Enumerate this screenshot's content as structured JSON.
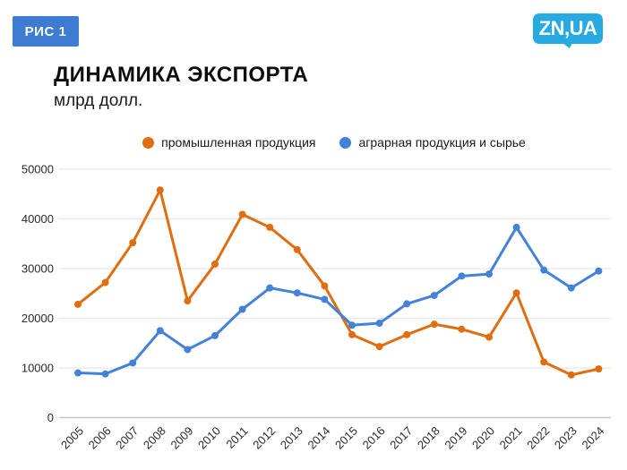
{
  "header": {
    "figure_badge": "РИС 1",
    "logo": "ZN,UA",
    "title": "ДИНАМИКА ЭКСПОРТА",
    "subtitle": "млрд долл."
  },
  "colors": {
    "badge_blue": "#3E7CD1",
    "logo_blue": "#27AAE1",
    "industrial_orange": "#E06E10",
    "agrarian_blue": "#4482D7",
    "gridline": "#E8E8E8",
    "zero_line": "#C6C6C6"
  },
  "chart_data": {
    "type": "line",
    "title": "ДИНАМИКА ЭКСПОРТА",
    "subtitle": "млрд долл.",
    "x": [
      2005,
      2006,
      2007,
      2008,
      2009,
      2010,
      2011,
      2012,
      2013,
      2014,
      2015,
      2016,
      2017,
      2018,
      2019,
      2020,
      2021,
      2022,
      2023,
      2024
    ],
    "series": [
      {
        "name": "промышленная продукция",
        "color": "#E06E10",
        "values": [
          22800,
          27200,
          35200,
          45800,
          23500,
          30900,
          40900,
          38300,
          33800,
          26500,
          16700,
          14300,
          16700,
          18800,
          17800,
          16200,
          25100,
          11200,
          8600,
          9800
        ]
      },
      {
        "name": "аграрная продукция и сырье",
        "color": "#4482D7",
        "values": [
          9000,
          8800,
          11000,
          17500,
          13700,
          16500,
          21800,
          26100,
          25100,
          23800,
          18600,
          19000,
          22900,
          24600,
          28500,
          28900,
          38300,
          29700,
          26100,
          29500
        ]
      }
    ],
    "xlabel": "",
    "ylabel": "",
    "ylim": [
      0,
      50000
    ],
    "yticks": [
      0,
      10000,
      20000,
      30000,
      40000,
      50000
    ],
    "grid": true,
    "legend_position": "top"
  }
}
